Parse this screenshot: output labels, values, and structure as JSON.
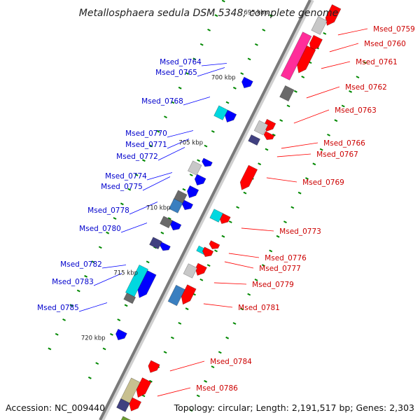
{
  "title": "Metallosphaera sedula DSM 5348, complete genome",
  "accession": "Accession: NC_009440",
  "topology": "Topology: circular; Length: 2,191,517 bp; Genes: 2,303",
  "colors": {
    "forward": "#ff0000",
    "reverse": "#0000ff",
    "backbone": "#888888",
    "tick": "#008800",
    "cyan": "#00d8e0",
    "steelblue": "#3a7fc0",
    "gray": "#6a6a6a",
    "lightgray": "#c8c8c8",
    "navy": "#404080",
    "magenta": "#ff2d9a",
    "olive": "#c8c090",
    "green": "#6a9a30"
  },
  "scale_labels": [
    {
      "text": "695 kbp",
      "pos": 0.06
    },
    {
      "text": "700 kbp",
      "pos": 0.215
    },
    {
      "text": "705 kbp",
      "pos": 0.37
    },
    {
      "text": "710 kbp",
      "pos": 0.525
    },
    {
      "text": "715 kbp",
      "pos": 0.68
    },
    {
      "text": "720 kbp",
      "pos": 0.835
    }
  ],
  "forward_labels": [
    {
      "text": "Msed_0759"
    },
    {
      "text": "Msed_0760"
    },
    {
      "text": "Msed_0761"
    },
    {
      "text": "Msed_0762"
    },
    {
      "text": "Msed_0763"
    },
    {
      "text": "Msed_0766"
    },
    {
      "text": "Msed_0767"
    },
    {
      "text": "Msed_0769"
    },
    {
      "text": "Msed_0773"
    },
    {
      "text": "Msed_0776"
    },
    {
      "text": "Msed_0777"
    },
    {
      "text": "Msed_0779"
    },
    {
      "text": "Msed_0781"
    },
    {
      "text": "Msed_0784"
    },
    {
      "text": "Msed_0786"
    }
  ],
  "reverse_labels": [
    {
      "text": "Msed_0764"
    },
    {
      "text": "Msed_0765"
    },
    {
      "text": "Msed_0768"
    },
    {
      "text": "Msed_0770"
    },
    {
      "text": "Msed_0771"
    },
    {
      "text": "Msed_0772"
    },
    {
      "text": "Msed_0774"
    },
    {
      "text": "Msed_0775"
    },
    {
      "text": "Msed_0778"
    },
    {
      "text": "Msed_0780"
    },
    {
      "text": "Msed_0782"
    },
    {
      "text": "Msed_0783"
    },
    {
      "text": "Msed_0785"
    }
  ]
}
